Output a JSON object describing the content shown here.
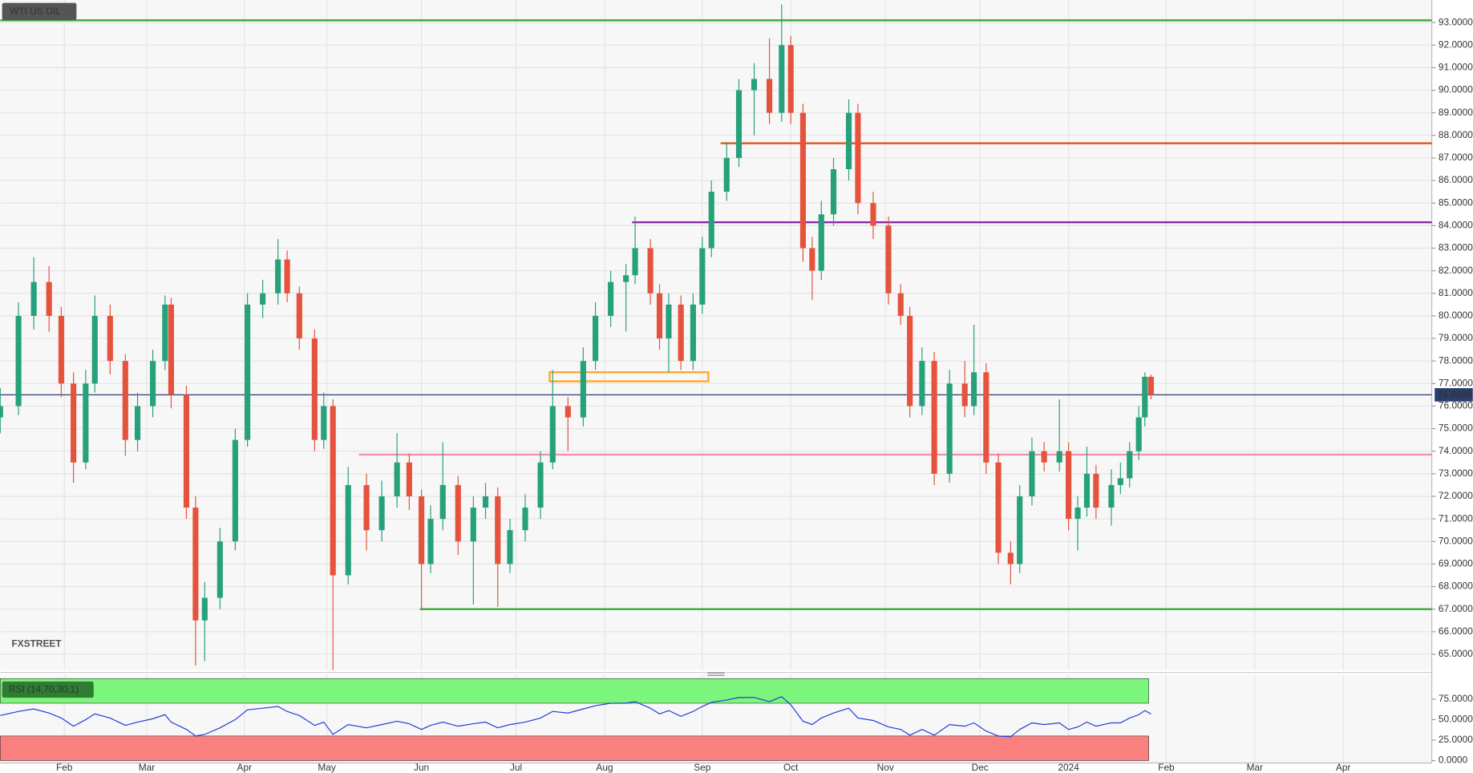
{
  "chart_data": [
    {
      "type": "candlestick",
      "title": "WTI US OIL",
      "watermark": "FXSTREET",
      "xlim": [
        0,
        469
      ],
      "ylim": [
        64.3,
        94
      ],
      "xticks": [
        {
          "value": 21,
          "label": "Feb"
        },
        {
          "value": 48,
          "label": "Mar"
        },
        {
          "value": 80,
          "label": "Apr"
        },
        {
          "value": 107,
          "label": "May"
        },
        {
          "value": 138,
          "label": "Jun"
        },
        {
          "value": 169,
          "label": "Jul"
        },
        {
          "value": 198,
          "label": "Aug"
        },
        {
          "value": 230,
          "label": "Sep"
        },
        {
          "value": 259,
          "label": "Oct"
        },
        {
          "value": 290,
          "label": "Nov"
        },
        {
          "value": 321,
          "label": "Dec"
        },
        {
          "value": 350,
          "label": "2024"
        },
        {
          "value": 382,
          "label": "Feb"
        },
        {
          "value": 411,
          "label": "Mar"
        },
        {
          "value": 440,
          "label": "Apr"
        }
      ],
      "yticks": [
        {
          "value": 65,
          "label": "65.0000"
        },
        {
          "value": 66,
          "label": "66.0000"
        },
        {
          "value": 67,
          "label": "67.0000"
        },
        {
          "value": 68,
          "label": "68.0000"
        },
        {
          "value": 69,
          "label": "69.0000"
        },
        {
          "value": 70,
          "label": "70.0000"
        },
        {
          "value": 71,
          "label": "71.0000"
        },
        {
          "value": 72,
          "label": "72.0000"
        },
        {
          "value": 73,
          "label": "73.0000"
        },
        {
          "value": 74,
          "label": "74.0000"
        },
        {
          "value": 75,
          "label": "75.0000"
        },
        {
          "value": 76,
          "label": "76.0000"
        },
        {
          "value": 77,
          "label": "77.0000"
        },
        {
          "value": 78,
          "label": "78.0000"
        },
        {
          "value": 79,
          "label": "79.0000"
        },
        {
          "value": 80,
          "label": "80.0000"
        },
        {
          "value": 81,
          "label": "81.0000"
        },
        {
          "value": 82,
          "label": "82.0000"
        },
        {
          "value": 83,
          "label": "83.0000"
        },
        {
          "value": 84,
          "label": "84.0000"
        },
        {
          "value": 85,
          "label": "85.0000"
        },
        {
          "value": 86,
          "label": "86.0000"
        },
        {
          "value": 87,
          "label": "87.0000"
        },
        {
          "value": 88,
          "label": "88.0000"
        },
        {
          "value": 89,
          "label": "89.0000"
        },
        {
          "value": 90,
          "label": "90.0000"
        },
        {
          "value": 91,
          "label": "91.0000"
        },
        {
          "value": 92,
          "label": "92.0000"
        },
        {
          "value": 93,
          "label": "93.0000"
        }
      ],
      "grid": true,
      "up_color": "#26a17b",
      "down_color": "#e5533d",
      "x": [
        0,
        6,
        11,
        16,
        20,
        24,
        28,
        31,
        36,
        41,
        45,
        50,
        54,
        56,
        61,
        64,
        67,
        72,
        77,
        81,
        86,
        91,
        94,
        98,
        103,
        106,
        109,
        114,
        120,
        125,
        130,
        134,
        138,
        141,
        145,
        150,
        155,
        159,
        163,
        167,
        172,
        177,
        181,
        186,
        191,
        195,
        200,
        205,
        208,
        213,
        216,
        219,
        223,
        227,
        230,
        233,
        238,
        242,
        247,
        252,
        256,
        259,
        263,
        266,
        269,
        273,
        278,
        281,
        286,
        291,
        295,
        298,
        302,
        306,
        311,
        316,
        319,
        323,
        327,
        331,
        334,
        338,
        342,
        347,
        350,
        353,
        356,
        359,
        364,
        367,
        370,
        373,
        375,
        377
      ],
      "candles": [
        [
          75.5,
          76.8,
          74.8,
          76
        ],
        [
          76,
          80.6,
          75.6,
          80
        ],
        [
          80,
          82.6,
          79.4,
          81.5
        ],
        [
          81.5,
          82.2,
          79.3,
          80
        ],
        [
          80,
          80.4,
          76.4,
          77
        ],
        [
          77,
          77.5,
          72.6,
          73.5
        ],
        [
          73.5,
          77.6,
          73.2,
          77
        ],
        [
          77,
          80.9,
          76.6,
          80
        ],
        [
          80,
          80.5,
          77.4,
          78
        ],
        [
          78,
          78.3,
          73.8,
          74.5
        ],
        [
          74.5,
          76.6,
          74,
          76
        ],
        [
          76,
          78.5,
          75.5,
          78
        ],
        [
          78,
          80.9,
          77.6,
          80.5
        ],
        [
          80.5,
          80.8,
          75.9,
          76.5
        ],
        [
          76.5,
          76.9,
          71,
          71.5
        ],
        [
          71.5,
          72,
          64.5,
          66.5
        ],
        [
          66.5,
          68.2,
          64.7,
          67.5
        ],
        [
          67.5,
          70.6,
          67,
          70
        ],
        [
          70,
          75,
          69.6,
          74.5
        ],
        [
          74.5,
          81,
          74.2,
          80.5
        ],
        [
          80.5,
          81.6,
          79.9,
          81
        ],
        [
          81,
          83.4,
          80.5,
          82.5
        ],
        [
          82.5,
          82.9,
          80.6,
          81
        ],
        [
          81,
          81.3,
          78.5,
          79
        ],
        [
          79,
          79.4,
          74,
          74.5
        ],
        [
          74.5,
          76.6,
          74.1,
          76
        ],
        [
          76,
          76.3,
          64.3,
          68.5
        ],
        [
          68.5,
          73.3,
          68.1,
          72.5
        ],
        [
          72.5,
          73,
          69.6,
          70.5
        ],
        [
          70.5,
          72.7,
          70,
          72
        ],
        [
          72,
          74.8,
          71.5,
          73.5
        ],
        [
          73.5,
          73.9,
          71.4,
          72
        ],
        [
          72,
          72.3,
          67,
          69
        ],
        [
          69,
          71.6,
          68.6,
          71
        ],
        [
          71,
          74.4,
          70.5,
          72.5
        ],
        [
          72.5,
          72.9,
          69.4,
          70
        ],
        [
          70,
          72,
          67.2,
          71.5
        ],
        [
          71.5,
          72.6,
          71,
          72
        ],
        [
          72,
          72.4,
          67.1,
          69
        ],
        [
          69,
          71,
          68.6,
          70.5
        ],
        [
          70.5,
          72.1,
          70,
          71.5
        ],
        [
          71.5,
          74,
          71,
          73.5
        ],
        [
          73.5,
          77.6,
          73.2,
          76
        ],
        [
          76,
          76.4,
          74,
          75.5
        ],
        [
          75.5,
          78.6,
          75.1,
          78
        ],
        [
          78,
          80.6,
          77.6,
          80
        ],
        [
          80,
          82,
          79.5,
          81.5
        ],
        [
          81.5,
          82.3,
          79.3,
          81.8
        ],
        [
          81.8,
          84.4,
          81.4,
          83
        ],
        [
          83,
          83.4,
          80.5,
          81
        ],
        [
          81,
          81.4,
          78.5,
          79
        ],
        [
          79,
          81,
          77.5,
          80.5
        ],
        [
          80.5,
          80.9,
          77.6,
          78
        ],
        [
          78,
          81,
          77.6,
          80.5
        ],
        [
          80.5,
          83.5,
          80.1,
          83
        ],
        [
          83,
          86,
          82.6,
          85.5
        ],
        [
          85.5,
          87.7,
          85.1,
          87
        ],
        [
          87,
          90.5,
          86.6,
          90
        ],
        [
          90,
          91.2,
          88,
          90.5
        ],
        [
          90.5,
          92.3,
          88.5,
          89
        ],
        [
          89,
          93.8,
          88.6,
          92
        ],
        [
          92,
          92.4,
          88.5,
          89
        ],
        [
          89,
          89.4,
          82.4,
          83
        ],
        [
          83,
          83.5,
          80.7,
          82
        ],
        [
          82,
          85.1,
          81.6,
          84.5
        ],
        [
          84.5,
          87,
          84,
          86.5
        ],
        [
          86.5,
          89.6,
          86,
          89
        ],
        [
          89,
          89.4,
          84.5,
          85
        ],
        [
          85,
          85.5,
          83.4,
          84
        ],
        [
          84,
          84.4,
          80.5,
          81
        ],
        [
          81,
          81.4,
          79.6,
          80
        ],
        [
          80,
          80.4,
          75.5,
          76
        ],
        [
          76,
          78.6,
          75.6,
          78
        ],
        [
          78,
          78.4,
          72.5,
          73
        ],
        [
          73,
          77.6,
          72.6,
          77
        ],
        [
          77,
          78,
          75.5,
          76
        ],
        [
          76,
          79.6,
          75.6,
          77.5
        ],
        [
          77.5,
          77.9,
          73,
          73.5
        ],
        [
          73.5,
          73.9,
          69,
          69.5
        ],
        [
          69.5,
          70,
          68.1,
          69
        ],
        [
          69,
          72.5,
          68.6,
          72
        ],
        [
          72,
          74.6,
          71.6,
          74
        ],
        [
          74,
          74.4,
          73.1,
          73.5
        ],
        [
          73.5,
          76.3,
          73.1,
          74
        ],
        [
          74,
          74.4,
          70.5,
          71
        ],
        [
          71,
          72,
          69.6,
          71.5
        ],
        [
          71.5,
          74.2,
          71.1,
          73
        ],
        [
          73,
          73.4,
          71,
          71.5
        ],
        [
          71.5,
          73.2,
          70.7,
          72.5
        ],
        [
          72.5,
          73.5,
          72.1,
          72.8
        ],
        [
          72.8,
          74.4,
          72.4,
          74
        ],
        [
          74,
          76,
          73.6,
          75.5
        ],
        [
          75.5,
          77.5,
          75.1,
          77.3
        ],
        [
          77.3,
          77.4,
          76.3,
          76.5
        ]
      ],
      "levels": [
        {
          "value": 93.1,
          "color": "#3aa63a",
          "x_start": 0
        },
        {
          "value": 87.65,
          "color": "#e0561b",
          "x_start": 236
        },
        {
          "value": 84.15,
          "color": "#8e24aa",
          "x_start": 207
        },
        {
          "value": 73.85,
          "color": "#f48fb1",
          "x_start": 117.5
        },
        {
          "value": 67.0,
          "color": "#3aa63a",
          "x_start": 137.5
        }
      ],
      "zone": {
        "x": [
          180,
          232
        ],
        "y": [
          77.1,
          77.5
        ],
        "color": "#ffa726"
      },
      "last_price": {
        "value": 76.5,
        "label": "76.5000",
        "color": "#2a3f6f"
      }
    },
    {
      "type": "line",
      "title": "RSI (14,70,30,1)",
      "color": "#1e3fd8",
      "ylim": [
        0,
        100
      ],
      "yticks": [
        {
          "value": 0,
          "label": "0.0000"
        },
        {
          "value": 25,
          "label": "25.0000"
        },
        {
          "value": 50,
          "label": "50.0000"
        },
        {
          "value": 75,
          "label": "75.0000"
        }
      ],
      "overbought": 70,
      "oversold": 30,
      "overbought_color": "#7cf57c",
      "oversold_color": "#fa7f7f",
      "values": [
        55,
        60,
        63,
        58,
        52,
        42,
        50,
        57,
        52,
        43,
        47,
        51,
        56,
        47,
        38,
        30,
        32,
        40,
        50,
        62,
        64,
        66,
        60,
        55,
        43,
        47,
        32,
        44,
        40,
        44,
        48,
        45,
        38,
        43,
        47,
        42,
        45,
        47,
        40,
        44,
        47,
        52,
        60,
        58,
        63,
        67,
        70,
        70,
        72,
        64,
        57,
        61,
        54,
        60,
        66,
        71,
        74,
        77,
        77,
        72,
        78,
        68,
        48,
        44,
        52,
        58,
        64,
        52,
        49,
        41,
        38,
        31,
        38,
        31,
        44,
        42,
        46,
        36,
        30,
        29,
        38,
        46,
        44,
        46,
        38,
        41,
        47,
        42,
        46,
        46,
        52,
        56,
        61,
        57
      ]
    }
  ]
}
